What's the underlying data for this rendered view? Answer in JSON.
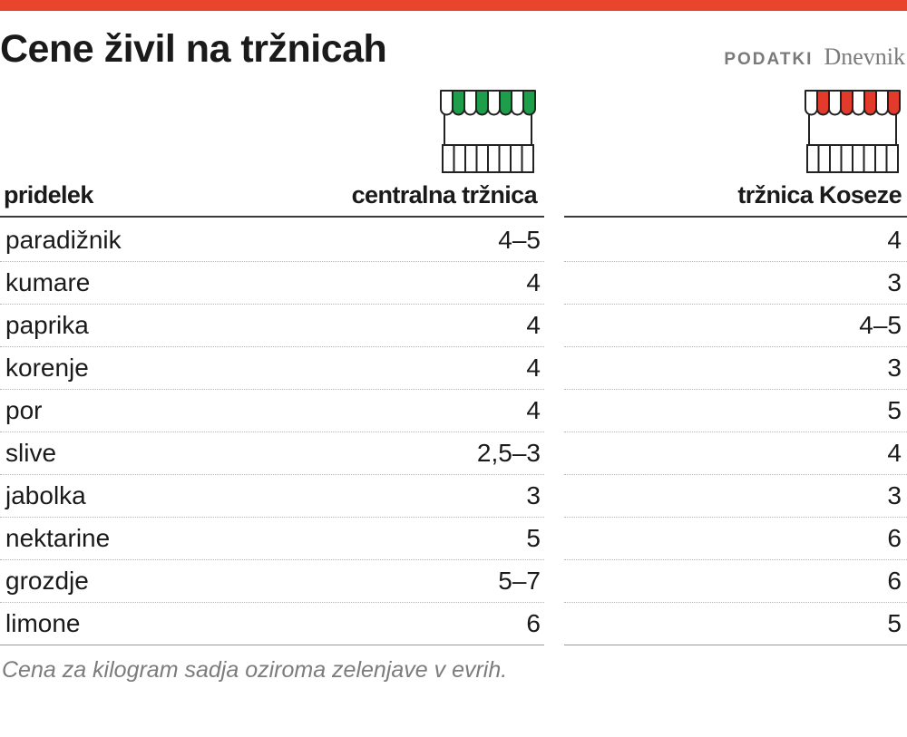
{
  "page": {
    "title": "Cene živil na tržnicah",
    "source_label": "PODATKI",
    "source_brand": "Dnevnik",
    "note": "Cena za kilogram sadja oziroma zelenjave v evrih.",
    "accent_color": "#e8452c"
  },
  "chart_data": {
    "type": "table",
    "columns": [
      "pridelek",
      "centralna tržnica",
      "tržnica Koseze"
    ],
    "column_icons": [
      "",
      "market-stall-green-icon",
      "market-stall-red-icon"
    ],
    "column_colors": [
      "",
      "#1e9e4a",
      "#e23a2b"
    ],
    "rows": [
      [
        "paradižnik",
        "4–5",
        "4"
      ],
      [
        "kumare",
        "4",
        "3"
      ],
      [
        "paprika",
        "4",
        "4–5"
      ],
      [
        "korenje",
        "4",
        "3"
      ],
      [
        "por",
        "4",
        "5"
      ],
      [
        "slive",
        "2,5–3",
        "4"
      ],
      [
        "jabolka",
        "3",
        "3"
      ],
      [
        "nektarine",
        "5",
        "6"
      ],
      [
        "grozdje",
        "5–7",
        "6"
      ],
      [
        "limone",
        "6",
        "5"
      ]
    ]
  }
}
